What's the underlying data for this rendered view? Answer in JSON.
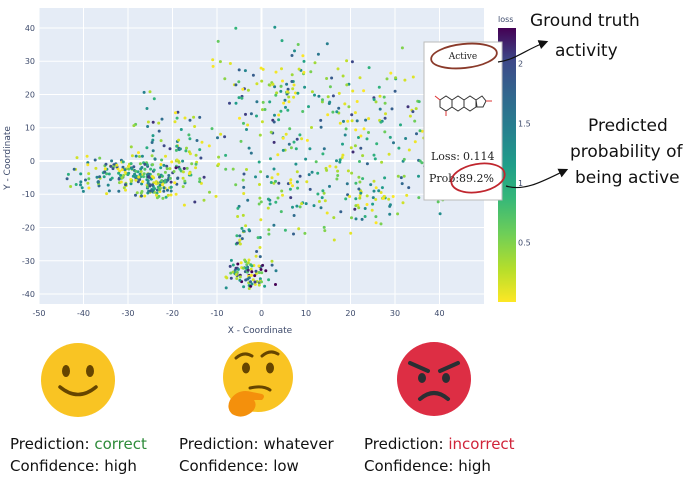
{
  "chart_data": {
    "type": "scatter",
    "xlabel": "X - Coordinate",
    "ylabel": "Y - Coordinate",
    "xlim": [
      -50,
      50
    ],
    "ylim": [
      -43,
      46
    ],
    "xticks": [
      -50,
      -40,
      -30,
      -20,
      -10,
      0,
      10,
      20,
      30,
      40
    ],
    "yticks": [
      -40,
      -30,
      -20,
      -10,
      0,
      10,
      20,
      30,
      40
    ],
    "colorbar": {
      "title": "loss",
      "range": [
        0,
        2.3
      ],
      "ticks": [
        0.5,
        1,
        1.5,
        2
      ],
      "colormap": "viridis-reversed"
    },
    "clusters": [
      {
        "cx": -29,
        "cy": -4,
        "sx": 9,
        "sy": 4,
        "n": 190,
        "loss_bias": 0.35
      },
      {
        "cx": -24,
        "cy": -8,
        "sx": 3,
        "sy": 2.5,
        "n": 60,
        "loss_bias": 0.3
      },
      {
        "cx": -3,
        "cy": -34,
        "sx": 4,
        "sy": 3,
        "n": 90,
        "loss_bias": 0.7
      },
      {
        "cx": -3,
        "cy": -24,
        "sx": 2.5,
        "sy": 4,
        "n": 20,
        "loss_bias": 0.4
      },
      {
        "cx": -20,
        "cy": 5,
        "sx": 7,
        "sy": 10,
        "n": 90,
        "loss_bias": 0.5
      },
      {
        "cx": 5,
        "cy": 18,
        "sx": 12,
        "sy": 14,
        "n": 150,
        "loss_bias": 0.4
      },
      {
        "cx": 8,
        "cy": -8,
        "sx": 12,
        "sy": 10,
        "n": 110,
        "loss_bias": 0.35
      },
      {
        "cx": 25,
        "cy": 10,
        "sx": 10,
        "sy": 14,
        "n": 90,
        "loss_bias": 0.45
      },
      {
        "cx": 25,
        "cy": -10,
        "sx": 6,
        "sy": 5,
        "n": 50,
        "loss_bias": 0.3
      },
      {
        "cx": 38,
        "cy": 0,
        "sx": 3,
        "sy": 12,
        "n": 30,
        "loss_bias": 0.4
      }
    ]
  },
  "tooltip": {
    "label": "Active",
    "loss_label": "Loss:",
    "loss_value": "0.114",
    "prob_label": "Prob:",
    "prob_value": "89.2%"
  },
  "annotations": {
    "ground_truth_line1": "Ground truth",
    "ground_truth_line2": "activity",
    "predicted_line1": "Predicted",
    "predicted_line2": "probability of",
    "predicted_line3": "being active"
  },
  "captions": [
    {
      "prediction_label": "Prediction:",
      "prediction_value": "correct",
      "confidence_label": "Confidence:",
      "confidence_value": "high",
      "emoji": "slightly-smiling-face"
    },
    {
      "prediction_label": "Prediction:",
      "prediction_value": "whatever",
      "confidence_label": "Confidence:",
      "confidence_value": "low",
      "emoji": "thinking-face"
    },
    {
      "prediction_label": "Prediction:",
      "prediction_value": "incorrect",
      "confidence_label": "Confidence:",
      "confidence_value": "high",
      "emoji": "angry-face"
    }
  ],
  "colors": {
    "correct": "#2e8b3a",
    "incorrect": "#d0243a",
    "circle_annotation": "#8a3a2a",
    "emoji_yellow": "#f9c423",
    "emoji_red": "#dd2e44"
  }
}
